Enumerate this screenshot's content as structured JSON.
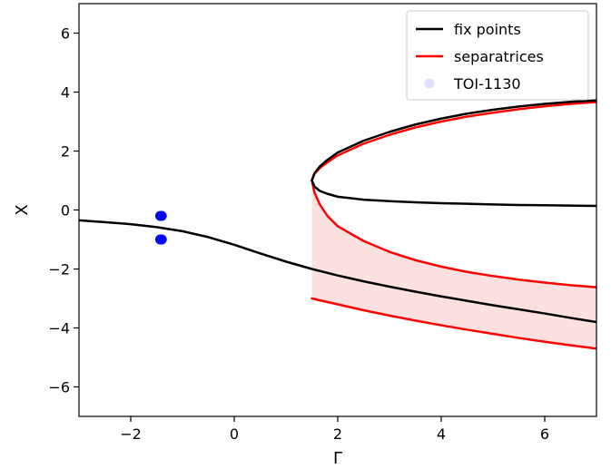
{
  "chart_data": {
    "type": "line",
    "xlabel": "Γ",
    "ylabel": "X",
    "xlim": [
      -3,
      7
    ],
    "ylim": [
      -7,
      7
    ],
    "x_ticks": [
      {
        "value": -2,
        "label": "−2"
      },
      {
        "value": 0,
        "label": "0"
      },
      {
        "value": 2,
        "label": "2"
      },
      {
        "value": 4,
        "label": "4"
      },
      {
        "value": 6,
        "label": "6"
      }
    ],
    "y_ticks": [
      {
        "value": -6,
        "label": "−6"
      },
      {
        "value": -4,
        "label": "−4"
      },
      {
        "value": -2,
        "label": "−2"
      },
      {
        "value": 0,
        "label": "0"
      },
      {
        "value": 2,
        "label": "2"
      },
      {
        "value": 4,
        "label": "4"
      },
      {
        "value": 6,
        "label": "6"
      }
    ],
    "grid": false,
    "legend_position": "top-right",
    "legend": [
      {
        "label": "fix points",
        "kind": "line",
        "color": "#000000"
      },
      {
        "label": "separatrices",
        "kind": "line",
        "color": "#ff0000"
      },
      {
        "label": "TOI-1130",
        "kind": "marker",
        "color": "#0000ff"
      }
    ],
    "series": [
      {
        "name": "fix points",
        "color": "#000000",
        "segments": [
          {
            "x": [
              -3,
              -2.5,
              -2,
              -1.5,
              -1,
              -0.5,
              0,
              0.5,
              1,
              1.5,
              2,
              2.5,
              3,
              3.5,
              4,
              4.5,
              5,
              5.5,
              6,
              6.5,
              7
            ],
            "y": [
              -0.35,
              -0.41,
              -0.48,
              -0.58,
              -0.72,
              -0.92,
              -1.18,
              -1.47,
              -1.75,
              -2.0,
              -2.22,
              -2.42,
              -2.6,
              -2.77,
              -2.93,
              -3.08,
              -3.23,
              -3.37,
              -3.51,
              -3.66,
              -3.8
            ]
          },
          {
            "x": [
              1.5,
              1.55,
              1.65,
              1.8,
              2,
              2.5,
              3,
              3.5,
              4,
              4.5,
              5,
              5.5,
              6,
              6.5,
              7
            ],
            "y": [
              1.0,
              1.25,
              1.47,
              1.7,
              1.95,
              2.35,
              2.65,
              2.9,
              3.1,
              3.27,
              3.4,
              3.51,
              3.6,
              3.67,
              3.72
            ]
          },
          {
            "x": [
              1.5,
              1.55,
              1.65,
              1.8,
              2,
              2.5,
              3,
              3.5,
              4,
              4.5,
              5,
              5.5,
              6,
              6.5,
              7
            ],
            "y": [
              1.0,
              0.8,
              0.65,
              0.55,
              0.45,
              0.35,
              0.3,
              0.26,
              0.23,
              0.21,
              0.19,
              0.17,
              0.16,
              0.15,
              0.14
            ]
          }
        ]
      },
      {
        "name": "separatrices",
        "color": "#ff0000",
        "segments": [
          {
            "x": [
              1.5,
              1.55,
              1.65,
              1.8,
              2,
              2.5,
              3,
              3.5,
              4,
              4.5,
              5,
              5.5,
              6,
              6.5,
              7
            ],
            "y": [
              1.0,
              1.22,
              1.42,
              1.62,
              1.85,
              2.25,
              2.55,
              2.8,
              3.0,
              3.17,
              3.3,
              3.42,
              3.52,
              3.6,
              3.66
            ]
          },
          {
            "x": [
              1.5,
              1.55,
              1.65,
              1.8,
              2,
              2.5,
              3,
              3.5,
              4,
              4.5,
              5,
              5.5,
              6,
              6.5,
              7
            ],
            "y": [
              1.0,
              0.6,
              0.2,
              -0.2,
              -0.55,
              -1.05,
              -1.42,
              -1.7,
              -1.92,
              -2.1,
              -2.24,
              -2.36,
              -2.46,
              -2.55,
              -2.62
            ]
          },
          {
            "x": [
              1.5,
              2,
              2.5,
              3,
              3.5,
              4,
              4.5,
              5,
              5.5,
              6,
              6.5,
              7
            ],
            "y": [
              -3.0,
              -3.2,
              -3.4,
              -3.58,
              -3.75,
              -3.91,
              -4.06,
              -4.2,
              -4.34,
              -4.47,
              -4.59,
              -4.7
            ]
          }
        ]
      }
    ],
    "shaded_region": {
      "color": "#fde0e0",
      "x": [
        1.5,
        1.55,
        1.65,
        1.8,
        2,
        2.5,
        3,
        3.5,
        4,
        4.5,
        5,
        5.5,
        6,
        6.5,
        7
      ],
      "y_upper": [
        1.0,
        0.6,
        0.2,
        -0.2,
        -0.55,
        -1.05,
        -1.42,
        -1.7,
        -1.92,
        -2.1,
        -2.24,
        -2.36,
        -2.46,
        -2.55,
        -2.62
      ],
      "y_lower": [
        -3.0,
        -3.02,
        -3.08,
        -3.14,
        -3.2,
        -3.4,
        -3.58,
        -3.75,
        -3.91,
        -4.06,
        -4.2,
        -4.34,
        -4.47,
        -4.59,
        -4.7
      ]
    },
    "points": {
      "name": "TOI-1130",
      "color": "#0000ff",
      "x": [
        -1.43,
        -1.4,
        -1.43,
        -1.4
      ],
      "y": [
        -0.2,
        -0.2,
        -1.0,
        -1.0
      ]
    }
  }
}
